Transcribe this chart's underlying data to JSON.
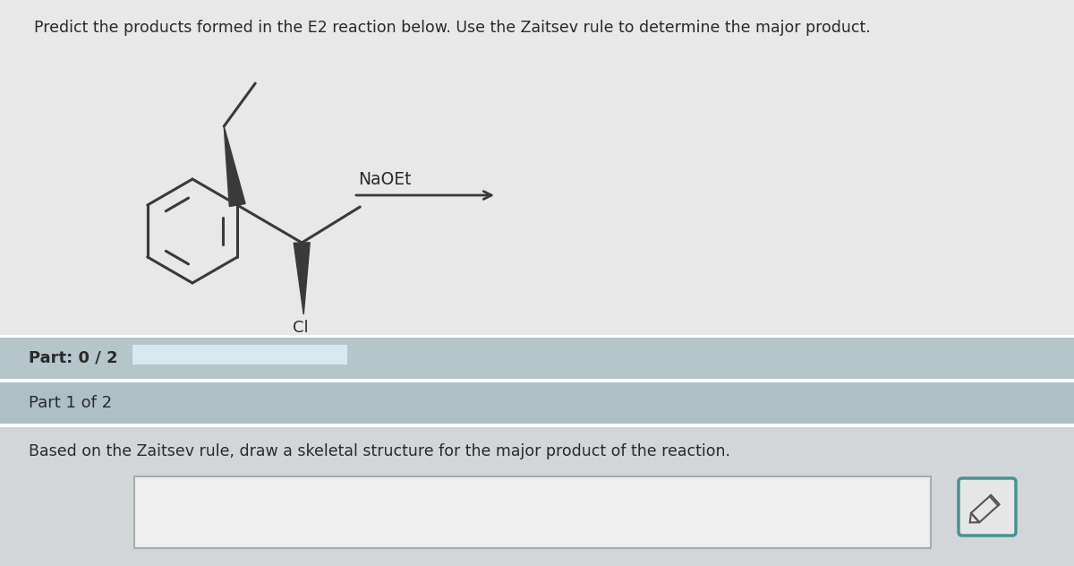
{
  "title_text": "Predict the products formed in the E2 reaction below. Use the Zaitsev rule to determine the major product.",
  "title_fontsize": 12.5,
  "background_color": "#d4d4d4",
  "upper_bg_color": "#e8e8e8",
  "part_bar_color": "#b8c4c8",
  "part1_bar_color": "#b0bcbf",
  "bottom_bg_color": "#d0d4d6",
  "bond_color": "#3a3a3a",
  "text_color": "#2a2a2a",
  "reagent_text": "NaOEt",
  "part_label": "Part: 0 / 2",
  "part1_label": "Part 1 of 2",
  "instruction_text": "Based on the Zaitsev rule, draw a skeletal structure for the major product of the reaction.",
  "draw_box_color": "#efefef",
  "pencil_box_border_color": "#4a9090",
  "pencil_box_fill": "#e8e8e8",
  "progress_bar_color": "#dde8ee",
  "separator_color": "#ffffff"
}
